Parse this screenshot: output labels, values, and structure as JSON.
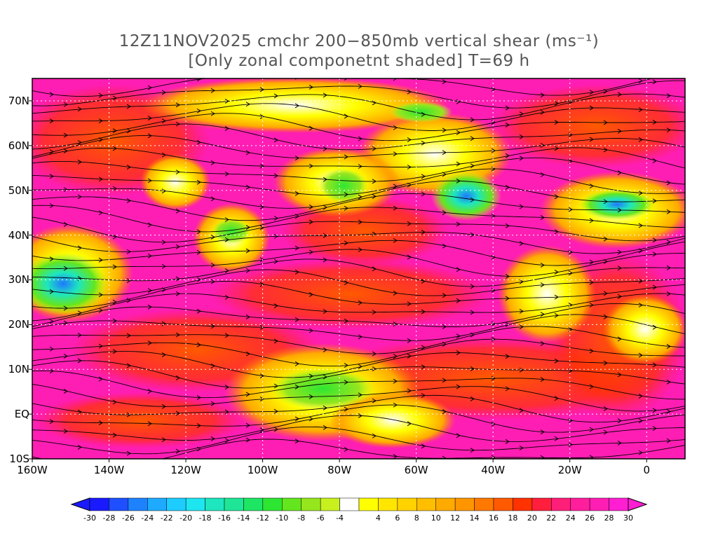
{
  "title": {
    "line1": "12Z11NOV2025 cmchr 200−850mb vertical shear (ms⁻¹)",
    "line2": "[Only zonal componetnt shaded] T=69 h"
  },
  "map": {
    "lat_labels": [
      "70N",
      "60N",
      "50N",
      "40N",
      "30N",
      "20N",
      "10N",
      "EQ",
      "10S"
    ],
    "lon_labels": [
      "160W",
      "140W",
      "120W",
      "100W",
      "80W",
      "60W",
      "40W",
      "20W",
      "0"
    ],
    "lat_values": [
      70,
      60,
      50,
      40,
      30,
      20,
      10,
      0,
      -10
    ],
    "lon_values": [
      -160,
      -140,
      -120,
      -100,
      -80,
      -60,
      -40,
      -20,
      0
    ],
    "lat_range": [
      -10,
      75
    ],
    "lon_range": [
      -160,
      10
    ]
  },
  "colorbar": {
    "levels": [
      -30,
      -28,
      -26,
      -24,
      -22,
      -20,
      -18,
      -16,
      -14,
      -12,
      -10,
      -8,
      -6,
      -4,
      4,
      6,
      8,
      10,
      12,
      14,
      16,
      18,
      20,
      22,
      24,
      26,
      28,
      30
    ],
    "labels": [
      "-30",
      "-28",
      "-26",
      "-24",
      "-22",
      "-20",
      "-18",
      "-16",
      "-14",
      "-12",
      "-10",
      "-8",
      "-6",
      "-4",
      "4",
      "6",
      "8",
      "10",
      "12",
      "14",
      "16",
      "18",
      "20",
      "22",
      "24",
      "26",
      "28",
      "30"
    ],
    "colors": [
      "#1a1aff",
      "#1e50ff",
      "#1e82ff",
      "#1eaaff",
      "#1ecdff",
      "#1ee6f0",
      "#1ee6be",
      "#1ee696",
      "#1ee664",
      "#2de632",
      "#64e61e",
      "#96e61e",
      "#c8f01e",
      "#ffffff",
      "#ffff00",
      "#ffe600",
      "#ffd200",
      "#ffbe00",
      "#ffaa00",
      "#ff9600",
      "#ff7800",
      "#ff5a00",
      "#ff3200",
      "#ff1e3c",
      "#ff1e78",
      "#ff1e9b",
      "#ff1eb4",
      "#ff1ed2"
    ]
  }
}
